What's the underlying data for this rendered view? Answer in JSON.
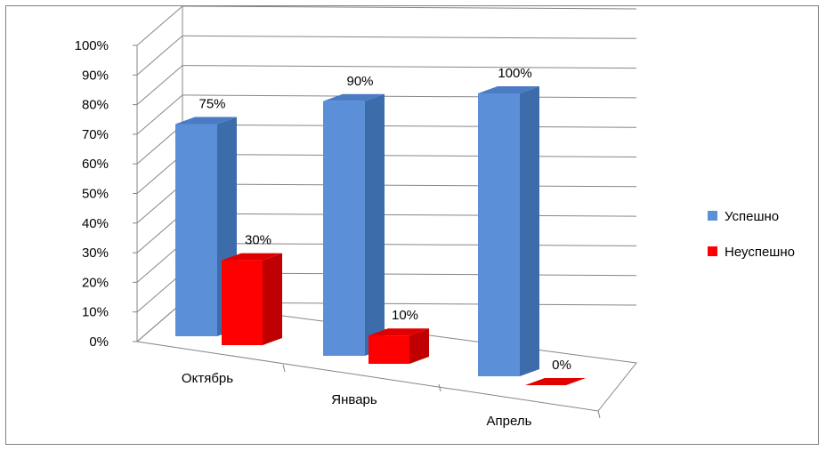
{
  "chart_data": {
    "type": "bar",
    "style": "3d-clustered-column",
    "categories": [
      "Октябрь",
      "Январь",
      "Апрель"
    ],
    "series": [
      {
        "name": "Успешно",
        "values": [
          75,
          90,
          100
        ],
        "labels": [
          "75%",
          "90%",
          "100%"
        ],
        "color": "#5b8fd8",
        "color_side": "#3d6cab",
        "color_top": "#4a7bc4"
      },
      {
        "name": "Неуспешно",
        "values": [
          30,
          10,
          0
        ],
        "labels": [
          "30%",
          "10%",
          "0%"
        ],
        "color": "#ff0000",
        "color_side": "#c00000",
        "color_top": "#e00000"
      }
    ],
    "y_ticks": [
      "0%",
      "10%",
      "20%",
      "30%",
      "40%",
      "50%",
      "60%",
      "70%",
      "80%",
      "90%",
      "100%"
    ],
    "ylim": [
      0,
      100
    ],
    "legend_position": "right",
    "grid": true
  }
}
